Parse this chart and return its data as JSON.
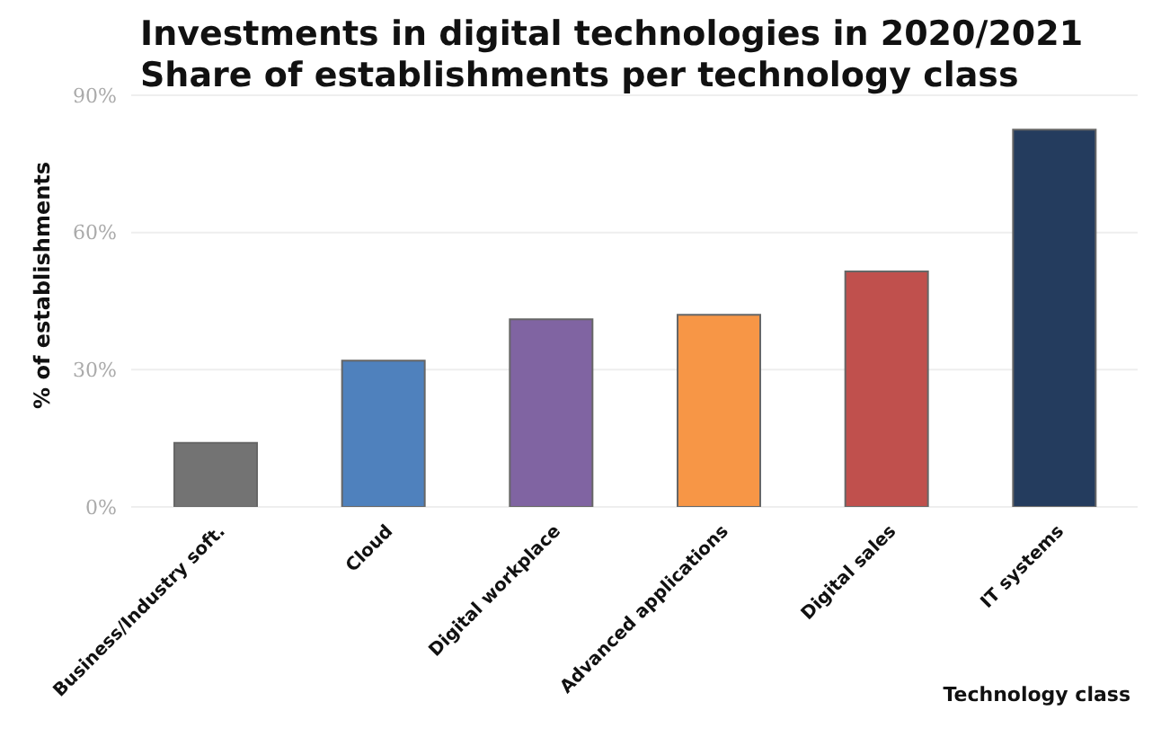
{
  "chart_data": {
    "type": "bar",
    "title": "Investments in digital technologies in 2020/2021",
    "subtitle": "Share of establishments per technology class",
    "xlabel": "Technology class",
    "ylabel": "% of establishments",
    "categories": [
      "Business/Industry soft.",
      "Cloud",
      "Digital workplace",
      "Advanced applications",
      "Digital sales",
      "IT systems"
    ],
    "values": [
      14,
      32,
      41,
      42,
      51.5,
      82.5
    ],
    "colors": [
      "#737373",
      "#4f81bd",
      "#8064a2",
      "#f79646",
      "#c0504d",
      "#243c5e"
    ],
    "ylim": [
      0,
      90
    ],
    "yticks": [
      {
        "value": 0,
        "label": "0%"
      },
      {
        "value": 30,
        "label": "30%"
      },
      {
        "value": 60,
        "label": "60%"
      },
      {
        "value": 90,
        "label": "90%"
      }
    ],
    "grid": "y"
  }
}
